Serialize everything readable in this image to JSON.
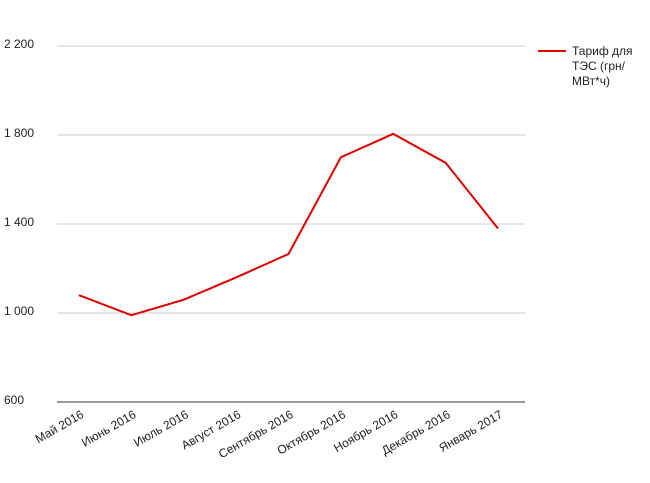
{
  "chart_data": {
    "type": "line",
    "categories": [
      "Май 2016",
      "Июнь 2016",
      "Июль 2016",
      "Август 2016",
      "Сентябрь 2016",
      "Октябрь 2016",
      "Ноябрь 2016",
      "Декабрь 2016",
      "Январь 2017"
    ],
    "series": [
      {
        "name": "Тариф для ТЭС (грн/МВт*ч)",
        "color": "#dd0000",
        "values": [
          1080,
          990,
          1060,
          1160,
          1265,
          1700,
          1805,
          1675,
          1380
        ]
      }
    ],
    "ylim": [
      600,
      2200
    ],
    "yticks": [
      600,
      {
        "value": 1000,
        "label": "1 000"
      },
      {
        "value": 1400,
        "label": "1 400"
      },
      {
        "value": 1800,
        "label": "1 800"
      },
      {
        "value": 2200,
        "label": "2 200"
      }
    ],
    "grid": true,
    "legend": "right"
  }
}
